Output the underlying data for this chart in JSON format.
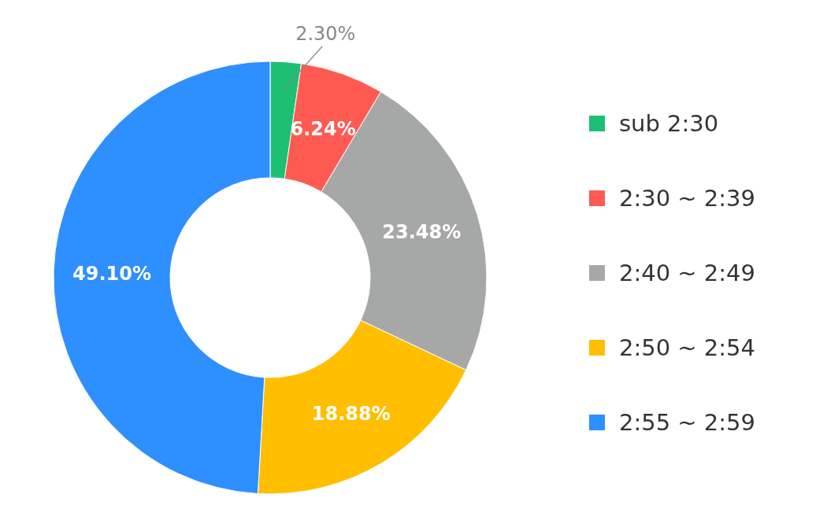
{
  "chart_data": {
    "type": "donut",
    "categories": [
      "sub 2:30",
      "2:30 ~ 2:39",
      "2:40 ~ 2:49",
      "2:50 ~ 2:54",
      "2:55 ~ 2:59"
    ],
    "values": [
      2.3,
      6.24,
      23.48,
      18.88,
      49.1
    ],
    "value_labels": [
      "2.30%",
      "6.24%",
      "23.48%",
      "18.88%",
      "49.10%"
    ],
    "colors": [
      "#1dbf73",
      "#ff5a52",
      "#a6a7a7",
      "#ffbf00",
      "#2e8fff"
    ],
    "legend": "right"
  }
}
